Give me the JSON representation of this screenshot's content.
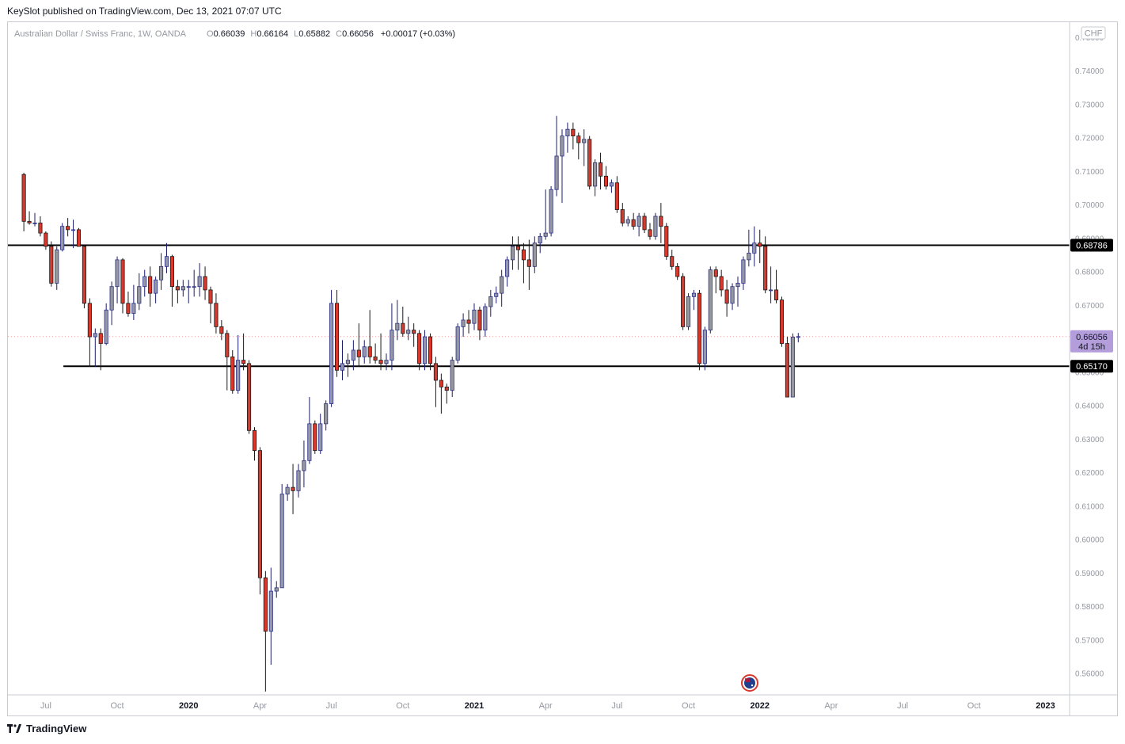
{
  "header": {
    "publisher_line": "KeySlot published on TradingView.com, Dec 13, 2021 07:07 UTC"
  },
  "footer": {
    "brand": "TradingView"
  },
  "chart_data": {
    "type": "candlestick",
    "instrument": "Australian Dollar / Swiss Franc, 1W, OANDA",
    "ohlc_summary": {
      "o_label": "O",
      "o_value": "0.66039",
      "h_label": "H",
      "h_value": "0.66164",
      "l_label": "L",
      "l_value": "0.65882",
      "c_label": "C",
      "c_value": "0.66056",
      "change": "+0.00017 (+0.03%)"
    },
    "currency_badge": "CHF",
    "y_ticks": [
      "0.75000",
      "0.74000",
      "0.73000",
      "0.72000",
      "0.71000",
      "0.70000",
      "0.69000",
      "0.68000",
      "0.67000",
      "0.66000",
      "0.65000",
      "0.64000",
      "0.63000",
      "0.62000",
      "0.61000",
      "0.60000",
      "0.59000",
      "0.58000",
      "0.57000",
      "0.56000"
    ],
    "x_ticks": [
      {
        "label": "Jul",
        "week": 4
      },
      {
        "label": "Oct",
        "week": 17
      },
      {
        "label": "2020",
        "week": 30
      },
      {
        "label": "Apr",
        "week": 43
      },
      {
        "label": "Jul",
        "week": 56
      },
      {
        "label": "Oct",
        "week": 69
      },
      {
        "label": "2021",
        "week": 82
      },
      {
        "label": "Apr",
        "week": 95
      },
      {
        "label": "Jul",
        "week": 108
      },
      {
        "label": "Oct",
        "week": 121
      },
      {
        "label": "2022",
        "week": 134
      },
      {
        "label": "Apr",
        "week": 147
      },
      {
        "label": "Jul",
        "week": 160
      },
      {
        "label": "Oct",
        "week": 173
      },
      {
        "label": "2023",
        "week": 186
      }
    ],
    "y_range": [
      0.5535,
      0.7545
    ],
    "week_range": [
      -2.9,
      190.4
    ],
    "horizontal_lines": [
      {
        "price": 0.68786,
        "label": "0.68786",
        "start_week": -3
      },
      {
        "price": 0.6517,
        "label": "0.65170",
        "start_week": 7.2
      }
    ],
    "current_price": {
      "price": 0.66056,
      "label": "0.66056",
      "countdown": "4d 15h"
    },
    "colors": {
      "up": "#9598a1",
      "up_fill": "#ffffff",
      "up_outline": "#2d2f8a",
      "down": "#d9392d",
      "line": "#000000",
      "badge": "#b39ddb"
    },
    "candles": [
      [
        0.709,
        0.7095,
        0.692,
        0.695
      ],
      [
        0.695,
        0.698,
        0.694,
        0.6945
      ],
      [
        0.6945,
        0.6975,
        0.6935,
        0.6945
      ],
      [
        0.6945,
        0.6965,
        0.6905,
        0.6915
      ],
      [
        0.6915,
        0.692,
        0.6865,
        0.6875
      ],
      [
        0.6875,
        0.689,
        0.6755,
        0.6765
      ],
      [
        0.6765,
        0.6875,
        0.6745,
        0.6865
      ],
      [
        0.6865,
        0.6945,
        0.686,
        0.6935
      ],
      [
        0.6935,
        0.696,
        0.6905,
        0.6925
      ],
      [
        0.6925,
        0.6955,
        0.687,
        0.6925
      ],
      [
        0.6925,
        0.693,
        0.6885,
        0.6875
      ],
      [
        0.6875,
        0.688,
        0.669,
        0.6705
      ],
      [
        0.6705,
        0.672,
        0.6515,
        0.6605
      ],
      [
        0.6605,
        0.663,
        0.6515,
        0.6615
      ],
      [
        0.6615,
        0.663,
        0.6505,
        0.6585
      ],
      [
        0.6585,
        0.6705,
        0.658,
        0.6685
      ],
      [
        0.6685,
        0.677,
        0.664,
        0.6755
      ],
      [
        0.6755,
        0.6845,
        0.6705,
        0.6835
      ],
      [
        0.6835,
        0.684,
        0.6675,
        0.6705
      ],
      [
        0.6705,
        0.674,
        0.6665,
        0.6675
      ],
      [
        0.6675,
        0.676,
        0.6655,
        0.6705
      ],
      [
        0.6705,
        0.6795,
        0.6685,
        0.6755
      ],
      [
        0.6755,
        0.6805,
        0.6725,
        0.6785
      ],
      [
        0.6785,
        0.6815,
        0.6695,
        0.6735
      ],
      [
        0.6735,
        0.6785,
        0.6705,
        0.6775
      ],
      [
        0.6775,
        0.6855,
        0.6745,
        0.6815
      ],
      [
        0.6815,
        0.6885,
        0.6795,
        0.6845
      ],
      [
        0.6845,
        0.685,
        0.6695,
        0.6755
      ],
      [
        0.6755,
        0.6775,
        0.6705,
        0.6745
      ],
      [
        0.6745,
        0.6775,
        0.6725,
        0.6755
      ],
      [
        0.6755,
        0.6775,
        0.6705,
        0.6755
      ],
      [
        0.6755,
        0.6805,
        0.6725,
        0.6755
      ],
      [
        0.6755,
        0.6825,
        0.6725,
        0.6785
      ],
      [
        0.6785,
        0.6815,
        0.6715,
        0.6745
      ],
      [
        0.6745,
        0.6755,
        0.6645,
        0.6705
      ],
      [
        0.6705,
        0.6735,
        0.6615,
        0.6635
      ],
      [
        0.6635,
        0.6655,
        0.6595,
        0.6615
      ],
      [
        0.6615,
        0.6625,
        0.6445,
        0.6545
      ],
      [
        0.6545,
        0.6565,
        0.6435,
        0.6445
      ],
      [
        0.6445,
        0.661,
        0.6435,
        0.6535
      ],
      [
        0.6535,
        0.6615,
        0.6505,
        0.6525
      ],
      [
        0.6525,
        0.6535,
        0.6315,
        0.6325
      ],
      [
        0.6325,
        0.6335,
        0.6235,
        0.6265
      ],
      [
        0.6265,
        0.6275,
        0.5835,
        0.5885
      ],
      [
        0.5885,
        0.5905,
        0.5545,
        0.5725
      ],
      [
        0.5725,
        0.5915,
        0.5625,
        0.5845
      ],
      [
        0.5845,
        0.5875,
        0.5825,
        0.5855
      ],
      [
        0.5855,
        0.6165,
        0.5855,
        0.6135
      ],
      [
        0.6135,
        0.6165,
        0.6115,
        0.6155
      ],
      [
        0.6155,
        0.6225,
        0.6075,
        0.6145
      ],
      [
        0.6145,
        0.6225,
        0.6125,
        0.6205
      ],
      [
        0.6205,
        0.6295,
        0.6155,
        0.6235
      ],
      [
        0.6235,
        0.6425,
        0.6225,
        0.6345
      ],
      [
        0.6345,
        0.6355,
        0.6255,
        0.6265
      ],
      [
        0.6265,
        0.6375,
        0.6255,
        0.6345
      ],
      [
        0.6345,
        0.6415,
        0.6325,
        0.6405
      ],
      [
        0.6405,
        0.6745,
        0.6395,
        0.6705
      ],
      [
        0.6705,
        0.6745,
        0.6485,
        0.6505
      ],
      [
        0.6505,
        0.6595,
        0.6475,
        0.6525
      ],
      [
        0.6525,
        0.6555,
        0.6485,
        0.6535
      ],
      [
        0.6535,
        0.6595,
        0.6505,
        0.6565
      ],
      [
        0.6565,
        0.6645,
        0.6515,
        0.6545
      ],
      [
        0.6545,
        0.6595,
        0.6525,
        0.6575
      ],
      [
        0.6575,
        0.6685,
        0.6525,
        0.6545
      ],
      [
        0.6545,
        0.6585,
        0.6525,
        0.6535
      ],
      [
        0.6535,
        0.6615,
        0.6505,
        0.6525
      ],
      [
        0.6525,
        0.6555,
        0.6505,
        0.6535
      ],
      [
        0.6535,
        0.6705,
        0.6505,
        0.6625
      ],
      [
        0.6625,
        0.6715,
        0.6595,
        0.6645
      ],
      [
        0.6645,
        0.6695,
        0.6605,
        0.6615
      ],
      [
        0.6615,
        0.6665,
        0.6595,
        0.6625
      ],
      [
        0.6625,
        0.6645,
        0.6575,
        0.6615
      ],
      [
        0.6615,
        0.6625,
        0.6505,
        0.6525
      ],
      [
        0.6525,
        0.6625,
        0.6505,
        0.6605
      ],
      [
        0.6605,
        0.6615,
        0.6505,
        0.6525
      ],
      [
        0.6525,
        0.6545,
        0.6395,
        0.6475
      ],
      [
        0.6475,
        0.6495,
        0.6375,
        0.6455
      ],
      [
        0.6455,
        0.6465,
        0.6405,
        0.6445
      ],
      [
        0.6445,
        0.6545,
        0.6425,
        0.6535
      ],
      [
        0.6535,
        0.6645,
        0.6525,
        0.6635
      ],
      [
        0.6635,
        0.6675,
        0.6605,
        0.6655
      ],
      [
        0.6655,
        0.6685,
        0.6615,
        0.6645
      ],
      [
        0.6645,
        0.6705,
        0.6625,
        0.6685
      ],
      [
        0.6685,
        0.6695,
        0.6595,
        0.6625
      ],
      [
        0.6625,
        0.6705,
        0.6605,
        0.6695
      ],
      [
        0.6695,
        0.6745,
        0.6665,
        0.6725
      ],
      [
        0.6725,
        0.6755,
        0.6705,
        0.6735
      ],
      [
        0.6735,
        0.6805,
        0.6695,
        0.6785
      ],
      [
        0.6785,
        0.6845,
        0.6755,
        0.6835
      ],
      [
        0.6835,
        0.6905,
        0.6805,
        0.6875
      ],
      [
        0.6875,
        0.6905,
        0.6805,
        0.6865
      ],
      [
        0.6865,
        0.6885,
        0.6765,
        0.6835
      ],
      [
        0.6835,
        0.6895,
        0.6745,
        0.6815
      ],
      [
        0.6815,
        0.6905,
        0.6795,
        0.6885
      ],
      [
        0.6885,
        0.6915,
        0.6855,
        0.6905
      ],
      [
        0.6905,
        0.7045,
        0.6895,
        0.6915
      ],
      [
        0.6915,
        0.7055,
        0.6905,
        0.7045
      ],
      [
        0.7045,
        0.7265,
        0.7025,
        0.7145
      ],
      [
        0.7145,
        0.7225,
        0.7005,
        0.7205
      ],
      [
        0.7205,
        0.7245,
        0.7155,
        0.7225
      ],
      [
        0.7225,
        0.7245,
        0.7165,
        0.7205
      ],
      [
        0.7205,
        0.7215,
        0.7135,
        0.7185
      ],
      [
        0.7185,
        0.7225,
        0.7115,
        0.7195
      ],
      [
        0.7195,
        0.7205,
        0.7045,
        0.7055
      ],
      [
        0.7055,
        0.7135,
        0.7025,
        0.7125
      ],
      [
        0.7125,
        0.7155,
        0.7045,
        0.7085
      ],
      [
        0.7085,
        0.7115,
        0.7045,
        0.7055
      ],
      [
        0.7055,
        0.7075,
        0.7035,
        0.7065
      ],
      [
        0.7065,
        0.7085,
        0.6975,
        0.6985
      ],
      [
        0.6985,
        0.7005,
        0.6935,
        0.6945
      ],
      [
        0.6945,
        0.6965,
        0.6935,
        0.6955
      ],
      [
        0.6955,
        0.6975,
        0.6925,
        0.6935
      ],
      [
        0.6935,
        0.6975,
        0.6905,
        0.6965
      ],
      [
        0.6965,
        0.6975,
        0.6915,
        0.6925
      ],
      [
        0.6925,
        0.6945,
        0.6895,
        0.6905
      ],
      [
        0.6905,
        0.6975,
        0.6895,
        0.6965
      ],
      [
        0.6965,
        0.7005,
        0.6885,
        0.6935
      ],
      [
        0.6935,
        0.6945,
        0.6835,
        0.6845
      ],
      [
        0.6845,
        0.6865,
        0.6805,
        0.6815
      ],
      [
        0.6815,
        0.6825,
        0.6775,
        0.6785
      ],
      [
        0.6785,
        0.6795,
        0.6625,
        0.6635
      ],
      [
        0.6635,
        0.6735,
        0.6625,
        0.6725
      ],
      [
        0.6725,
        0.6745,
        0.6685,
        0.6735
      ],
      [
        0.6735,
        0.6745,
        0.6505,
        0.6525
      ],
      [
        0.6525,
        0.6635,
        0.6505,
        0.6625
      ],
      [
        0.6625,
        0.6815,
        0.6615,
        0.6805
      ],
      [
        0.6805,
        0.6815,
        0.6735,
        0.6785
      ],
      [
        0.6785,
        0.6805,
        0.6725,
        0.6745
      ],
      [
        0.6745,
        0.6775,
        0.6665,
        0.6705
      ],
      [
        0.6705,
        0.6765,
        0.6685,
        0.6755
      ],
      [
        0.6755,
        0.6785,
        0.6695,
        0.6765
      ],
      [
        0.6765,
        0.6845,
        0.6745,
        0.6835
      ],
      [
        0.6835,
        0.6925,
        0.6815,
        0.6855
      ],
      [
        0.6855,
        0.6935,
        0.6815,
        0.6885
      ],
      [
        0.6885,
        0.6925,
        0.6825,
        0.6875
      ],
      [
        0.6875,
        0.6905,
        0.6735,
        0.6745
      ],
      [
        0.6745,
        0.6815,
        0.6705,
        0.6745
      ],
      [
        0.6745,
        0.6805,
        0.6705,
        0.6715
      ],
      [
        0.6715,
        0.6725,
        0.6575,
        0.6585
      ],
      [
        0.6585,
        0.6605,
        0.6425,
        0.6425
      ],
      [
        0.6425,
        0.6615,
        0.6425,
        0.6604
      ],
      [
        0.66039,
        0.66164,
        0.65882,
        0.66056
      ]
    ]
  }
}
